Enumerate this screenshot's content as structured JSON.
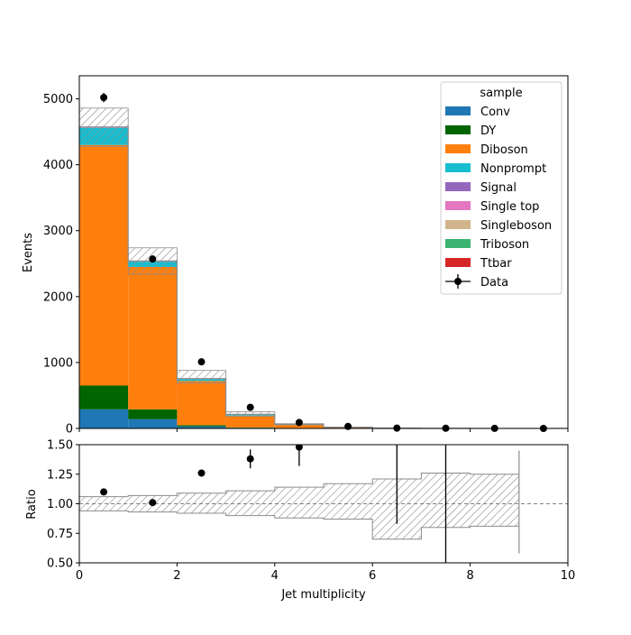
{
  "chart_data": {
    "type": "bar",
    "stacked": true,
    "x_bin_edges": [
      0,
      1,
      2,
      3,
      4,
      5,
      6,
      7,
      8,
      9,
      10
    ],
    "xlabel": "Jet multiplicity",
    "xlim": [
      0,
      10
    ],
    "xticks": [
      "0",
      "2",
      "4",
      "6",
      "8",
      "10"
    ],
    "xtick_values": [
      0,
      2,
      4,
      6,
      8,
      10
    ],
    "main": {
      "ylabel": "Events",
      "ylim": [
        0,
        5350
      ],
      "yticks": [
        "0",
        "1000",
        "2000",
        "3000",
        "4000",
        "5000"
      ],
      "ytick_values": [
        0,
        1000,
        2000,
        3000,
        4000,
        5000
      ],
      "series": [
        {
          "name": "Conv",
          "color": "#1f77b4",
          "values": [
            290,
            140,
            30,
            10,
            3,
            1,
            0,
            0,
            0,
            0
          ]
        },
        {
          "name": "DY",
          "color": "#006400",
          "values": [
            360,
            150,
            20,
            5,
            2,
            1,
            0,
            0,
            0,
            0
          ]
        },
        {
          "name": "Diboson",
          "color": "#ff7f0e",
          "values": [
            3650,
            2160,
            670,
            180,
            50,
            14,
            5,
            2,
            1,
            0
          ]
        },
        {
          "name": "Nonprompt",
          "color": "#17becf",
          "values": [
            260,
            80,
            30,
            15,
            5,
            2,
            1,
            0,
            0,
            0
          ]
        },
        {
          "name": "Signal",
          "color": "#9467bd",
          "values": [
            5,
            3,
            2,
            1,
            0,
            0,
            0,
            0,
            0,
            0
          ]
        },
        {
          "name": "Single top",
          "color": "#e377c2",
          "values": [
            2,
            2,
            1,
            1,
            0,
            0,
            0,
            0,
            0,
            0
          ]
        },
        {
          "name": "Singleboson",
          "color": "#d2b48c",
          "values": [
            2,
            1,
            1,
            0,
            0,
            0,
            0,
            0,
            0,
            0
          ]
        },
        {
          "name": "Triboson",
          "color": "#3cb371",
          "values": [
            3,
            3,
            2,
            1,
            1,
            0,
            0,
            0,
            0,
            0
          ]
        },
        {
          "name": "Ttbar",
          "color": "#d62728",
          "values": [
            2,
            1,
            1,
            1,
            0,
            0,
            0,
            0,
            0,
            0
          ]
        }
      ],
      "totals": [
        4574,
        2540,
        757,
        214,
        61,
        18,
        6,
        2,
        1,
        0
      ],
      "unc_up": [
        4860,
        2740,
        880,
        255,
        72,
        22,
        8,
        3,
        1,
        0
      ],
      "unc_down": [
        4280,
        2340,
        690,
        185,
        55,
        16,
        5,
        2,
        1,
        0
      ],
      "data": {
        "name": "Data",
        "x": [
          0.5,
          1.5,
          2.5,
          3.5,
          4.5,
          5.5,
          6.5,
          7.5,
          8.5,
          9.5
        ],
        "y": [
          5020,
          2570,
          1010,
          320,
          90,
          30,
          5,
          3,
          1,
          0
        ],
        "yerr": [
          71,
          51,
          32,
          18,
          9.5,
          5.5,
          2.2,
          1.7,
          1,
          0
        ]
      }
    },
    "ratio": {
      "ylabel": "Ratio",
      "ylim": [
        0.5,
        1.5
      ],
      "yticks": [
        "0.50",
        "0.75",
        "1.00",
        "1.25",
        "1.50"
      ],
      "ytick_values": [
        0.5,
        0.75,
        1.0,
        1.25,
        1.5
      ],
      "reference_line": 1.0,
      "band_up": [
        1.06,
        1.07,
        1.09,
        1.11,
        1.14,
        1.17,
        1.21,
        1.26,
        1.25
      ],
      "band_down": [
        0.94,
        0.93,
        0.92,
        0.9,
        0.88,
        0.87,
        0.7,
        0.8,
        0.81
      ],
      "points": {
        "x": [
          0.5,
          1.5,
          2.5,
          3.5,
          4.5
        ],
        "y": [
          1.1,
          1.01,
          1.26,
          1.38,
          1.48
        ],
        "yerr": [
          0.015,
          0.02,
          0.03,
          0.08,
          0.16
        ]
      },
      "large_error_bars": [
        {
          "x": 6.5,
          "low": 0.83,
          "high": 1.5
        },
        {
          "x": 7.5,
          "low": 0.5,
          "high": 1.5
        }
      ],
      "last_bin_edge_error": {
        "x": 9,
        "low": 0.58,
        "high": 1.45
      }
    },
    "legend": {
      "title": "sample",
      "placement": "top-right",
      "data_label": "Data"
    }
  }
}
